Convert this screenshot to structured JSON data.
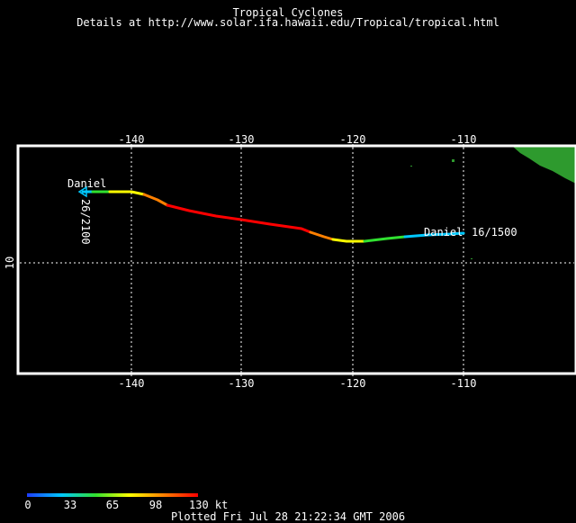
{
  "header": {
    "title": "Tropical Cyclones",
    "subtitle": "Details at http://www.solar.ifa.hawaii.edu/Tropical/tropical.html"
  },
  "map": {
    "lon_ticks": [
      "-140",
      "-130",
      "-120",
      "-110"
    ],
    "lat_tick": "10",
    "land_color": "#2e9a2e",
    "grid_color": "#ffffff"
  },
  "storm": {
    "name_start": "Daniel",
    "date_start": "26/2100",
    "name_end": "Daniel",
    "date_end": "16/1500"
  },
  "legend": {
    "ticks": [
      "0",
      "33",
      "65",
      "98",
      "130 kt"
    ],
    "colors": [
      "#1e3cff",
      "#00c8ff",
      "#30e030",
      "#ffff00",
      "#ff8000",
      "#ff0000"
    ]
  },
  "footer": {
    "plotted": "Plotted Fri Jul 28 21:22:34 GMT 2006"
  }
}
